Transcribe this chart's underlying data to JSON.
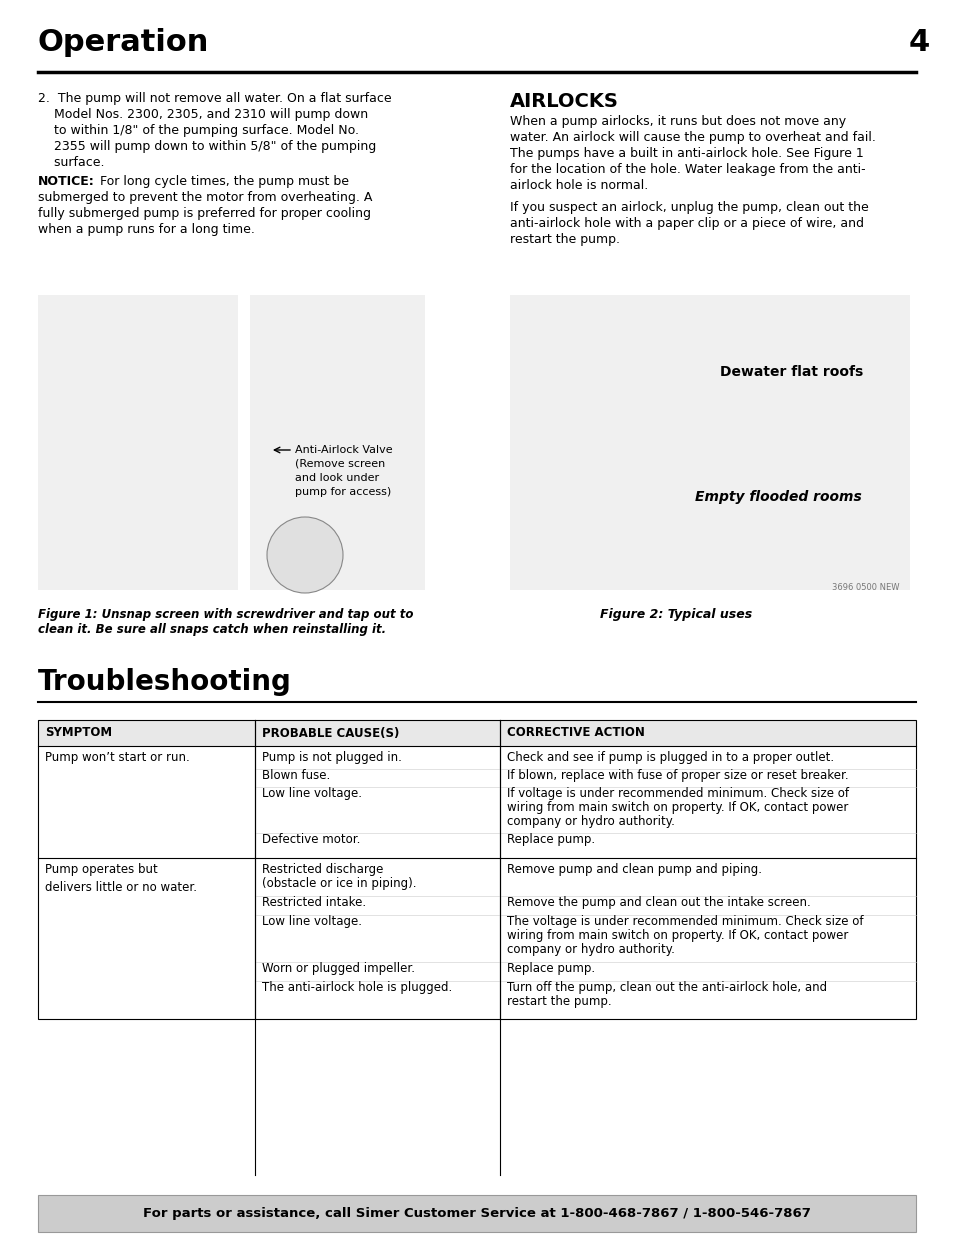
{
  "page_bg": "#ffffff",
  "header_title": "Operation",
  "header_number": "4",
  "para1": "2.  The pump will not remove all water. On a flat surface\n    Model Nos. 2300, 2305, and 2310 will pump down\n    to within 1/8\" of the pumping surface. Model No.\n    2355 will pump down to within 5/8\" of the pumping\n    surface.",
  "notice_label": "NOTICE:",
  "notice_rest": " For long cycle times, the pump must be\nsubmerged to prevent the motor from overheating. A\nfully submerged pump is preferred for proper cooling\nwhen a pump runs for a long time.",
  "fig1_caption": "Figure 1: Unsnap screen with screwdriver and tap out to\nclean it. Be sure all snaps catch when reinstalling it.",
  "airlocks_title": "AIRLOCKS",
  "airlocks_body1": "When a pump airlocks, it runs but does not move any\nwater. An airlock will cause the pump to overheat and fail.\nThe pumps have a built in anti-airlock hole. See Figure 1\nfor the location of the hole. Water leakage from the anti-\nairlock hole is normal.",
  "airlocks_body2": "If you suspect an airlock, unplug the pump, clean out the\nanti-airlock hole with a paper clip or a piece of wire, and\nrestart the pump.",
  "dewater_label": "Dewater flat roofs",
  "flooded_label": "Empty flooded rooms",
  "fig2_caption": "Figure 2: Typical uses",
  "fig2_id": "3696 0500 NEW",
  "anti_airlock_label": "Anti-Airlock Valve\n(Remove screen\nand look under\npump for access)",
  "troubleshooting_title": "Troubleshooting",
  "table_headers": [
    "SYMPTOM",
    "PROBABLE CAUSE(S)",
    "CORRECTIVE ACTION"
  ],
  "row1_symptom": "Pump won’t start or run.",
  "row1_causes": [
    "Pump is not plugged in.",
    "Blown fuse.",
    "Low line voltage.",
    "",
    "",
    "Defective motor."
  ],
  "row1_actions": [
    "Check and see if pump is plugged in to a proper outlet.",
    "If blown, replace with fuse of proper size or reset breaker.",
    "If voltage is under recommended minimum. Check size of\nwiring from main switch on property. If OK, contact power\ncompany or hydro authority.",
    "",
    "",
    "Replace pump."
  ],
  "row2_symptom": "Pump operates but\ndelivers little or no water.",
  "row2_causes": [
    "Restricted discharge\n(obstacle or ice in piping).",
    "",
    "Restricted intake.",
    "Low line voltage.",
    "",
    "",
    "Worn or plugged impeller.",
    "The anti-airlock hole is plugged."
  ],
  "row2_actions": [
    "Remove pump and clean pump and piping.",
    "",
    "Remove the pump and clean out the intake screen.",
    "The voltage is under recommended minimum. Check size of\nwiring from main switch on property. If OK, contact power\ncompany or hydro authority.",
    "",
    "",
    "Replace pump.",
    "Turn off the pump, clean out the anti-airlock hole, and\nrestart the pump."
  ],
  "footer_normal": "For parts or assistance, call Simer Customer Service at ",
  "footer_bold": "1-800-468-7867 / 1-800-546-7867"
}
